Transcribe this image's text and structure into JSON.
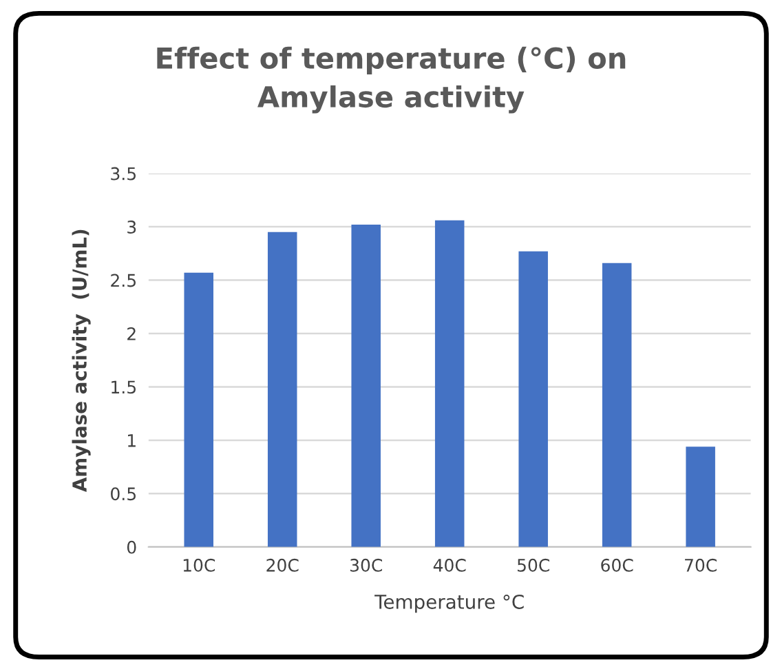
{
  "chart_data": {
    "type": "bar",
    "title": "Effect of temperature (°C) on\nAmylase activity",
    "xlabel": "Temperature °C",
    "ylabel": "Amylase activity  (U/mL)",
    "categories": [
      "10C",
      "20C",
      "30C",
      "40C",
      "50C",
      "60C",
      "70C"
    ],
    "values": [
      2.57,
      2.95,
      3.02,
      3.06,
      2.77,
      2.66,
      0.94
    ],
    "color": "#4472c4",
    "ylim": [
      0,
      3.5
    ],
    "yticks": [
      0,
      0.5,
      1,
      1.5,
      2,
      2.5,
      3,
      3.5
    ],
    "grid": "y"
  }
}
